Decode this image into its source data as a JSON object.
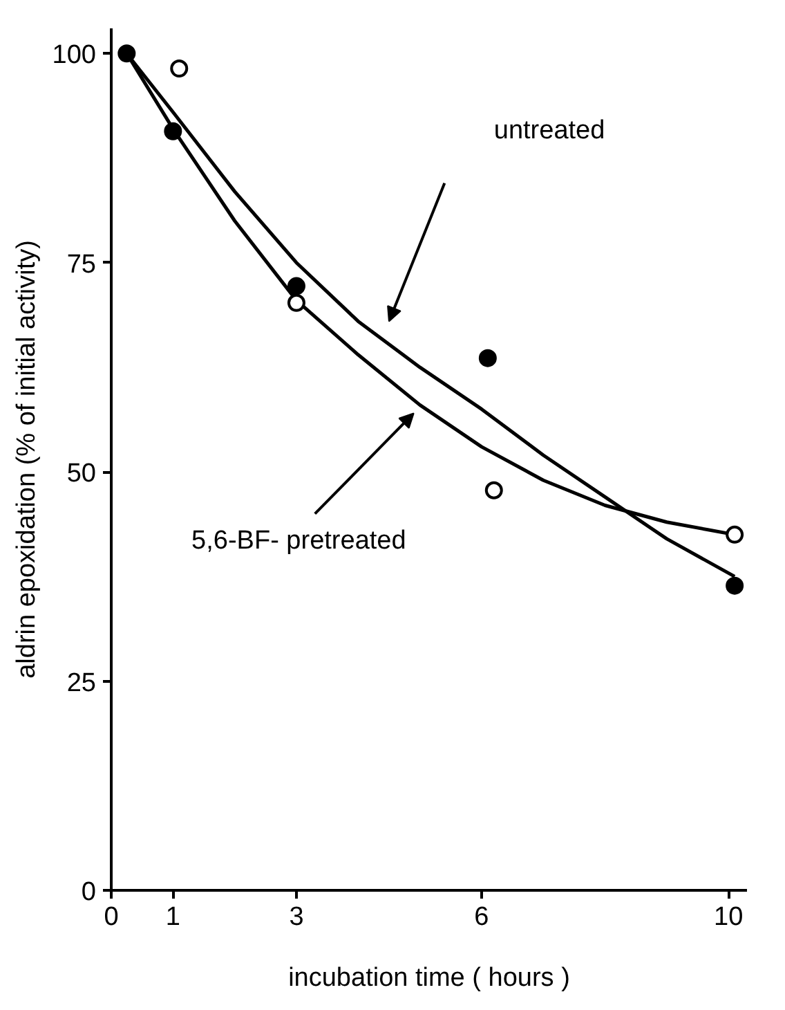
{
  "chart_data": {
    "type": "scatter",
    "xlabel": "incubation time ( hours )",
    "ylabel": "aldrin epoxidation (% of initial activity)",
    "xlim": [
      0,
      10.3
    ],
    "ylim": [
      0,
      103
    ],
    "xticks": [
      0,
      1,
      3,
      6,
      10
    ],
    "yticks": [
      0,
      25,
      50,
      75,
      100
    ],
    "grid": false,
    "marker": "circle",
    "series": [
      {
        "color": "#000000",
        "x": [
          0.25,
          1,
          3,
          6.1,
          10.1
        ],
        "values": [
          100,
          90.7,
          72.2,
          63.6,
          36.4
        ]
      },
      {
        "color": "#ffffff",
        "x": [
          1.1,
          3,
          6.2,
          10.1
        ],
        "values": [
          98.2,
          70.2,
          47.8,
          42.5
        ]
      },
      {
        "type": "line",
        "color": "#000000",
        "marker": "none",
        "x": [
          0.25,
          1,
          2,
          3,
          4,
          5,
          6,
          7,
          8,
          9,
          10.1
        ],
        "values": [
          100,
          93,
          83.5,
          75,
          68,
          62.5,
          57.5,
          52,
          47,
          42,
          37.5
        ]
      },
      {
        "type": "line",
        "color": "#000000",
        "marker": "none",
        "x": [
          0.25,
          1,
          2,
          3,
          4,
          5,
          6,
          7,
          8,
          9,
          10.1
        ],
        "values": [
          100,
          91,
          80,
          70.5,
          64,
          58,
          53,
          49,
          46,
          44,
          42.5
        ]
      }
    ],
    "annotations": [
      "untreated",
      "5,6-BF- pretreated"
    ]
  }
}
